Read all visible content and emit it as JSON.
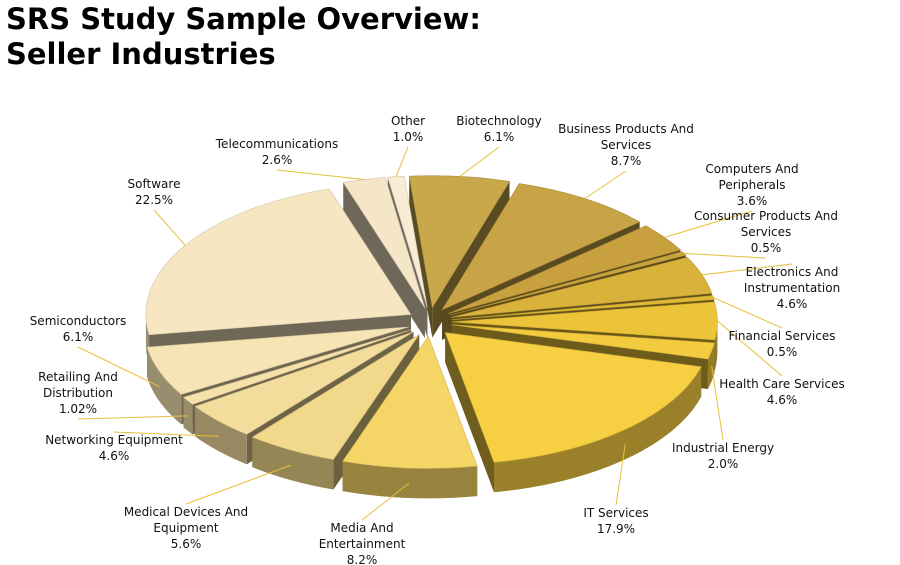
{
  "page": {
    "title_line1": "SRS Study Sample Overview:",
    "title_line2": "Seller Industries"
  },
  "chart_data": {
    "type": "pie",
    "title": "SRS Study Sample Overview: Seller Industries",
    "exploded": true,
    "three_d": true,
    "slices": [
      {
        "label": "Biotechnology",
        "value_label": "6.1%",
        "value": 6.1,
        "color": "#c9a84c"
      },
      {
        "label": "Business Products And Services",
        "value_label": "8.7%",
        "value": 8.7,
        "color": "#c9a446"
      },
      {
        "label": "Computers And Peripherals",
        "value_label": "3.6%",
        "value": 3.6,
        "color": "#c8a13e"
      },
      {
        "label": "Consumer Products And Services",
        "value_label": "0.5%",
        "value": 0.5,
        "color": "#c9a43c"
      },
      {
        "label": "Electronics And Instrumentation",
        "value_label": "4.6%",
        "value": 4.6,
        "color": "#d8b23a"
      },
      {
        "label": "Financial Services",
        "value_label": "0.5%",
        "value": 0.5,
        "color": "#e0b936"
      },
      {
        "label": "Health Care Services",
        "value_label": "4.6%",
        "value": 4.6,
        "color": "#ecc43a"
      },
      {
        "label": "Industrial Energy",
        "value_label": "2.0%",
        "value": 2.0,
        "color": "#f2cb3e"
      },
      {
        "label": "IT Services",
        "value_label": "17.9%",
        "value": 17.9,
        "color": "#f7cf42"
      },
      {
        "label": "Media And Entertainment",
        "value_label": "8.2%",
        "value": 8.2,
        "color": "#f5d565"
      },
      {
        "label": "Medical Devices And Equipment",
        "value_label": "5.6%",
        "value": 5.6,
        "color": "#f1d88a"
      },
      {
        "label": "Networking Equipment",
        "value_label": "4.6%",
        "value": 4.6,
        "color": "#f3dd9c"
      },
      {
        "label": "Retailing And Distribution",
        "value_label": "1.02%",
        "value": 1.02,
        "color": "#f5e1a9"
      },
      {
        "label": "Semiconductors",
        "value_label": "6.1%",
        "value": 6.1,
        "color": "#f6e4b4"
      },
      {
        "label": "Software",
        "value_label": "22.5%",
        "value": 22.5,
        "color": "#f7e6c2"
      },
      {
        "label": "Telecommunications",
        "value_label": "2.6%",
        "value": 2.6,
        "color": "#f6e6c8"
      },
      {
        "label": "Other",
        "value_label": "1.0%",
        "value": 1.0,
        "color": "#f8ecd4"
      }
    ]
  }
}
